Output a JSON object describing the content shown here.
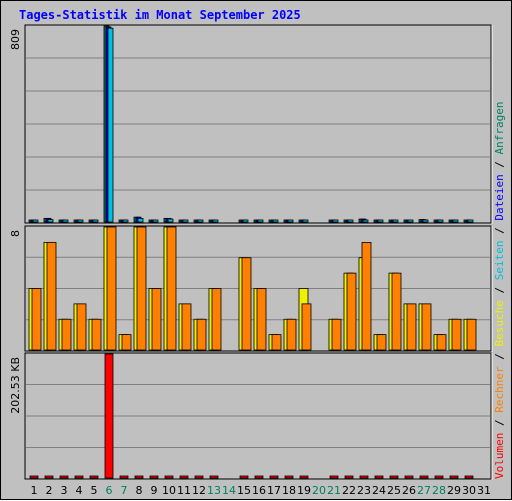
{
  "chart_data": {
    "type": "bar",
    "title": "Tages-Statistik im Monat September 2025",
    "categories": [
      "1",
      "2",
      "3",
      "4",
      "5",
      "6",
      "7",
      "8",
      "9",
      "10",
      "11",
      "12",
      "13",
      "14",
      "15",
      "16",
      "17",
      "18",
      "19",
      "20",
      "21",
      "22",
      "23",
      "24",
      "25",
      "26",
      "27",
      "28",
      "29",
      "30",
      "31"
    ],
    "weekend_days": [
      "6",
      "7",
      "13",
      "14",
      "20",
      "21",
      "27",
      "28"
    ],
    "grid": true,
    "legend_position": "right (vertical)",
    "legend": [
      {
        "label": "Anfragen",
        "color": "#008060"
      },
      {
        "label": "Dateien",
        "color": "#0000ff"
      },
      {
        "label": "Seiten",
        "color": "#00c0e0"
      },
      {
        "label": "Besuche",
        "color": "#f0f000"
      },
      {
        "label": "Rechner",
        "color": "#ff8000"
      },
      {
        "label": "Volumen",
        "color": "#ff0000"
      }
    ],
    "legend_separator": "/",
    "panels": [
      {
        "y_max_label": "809",
        "ylim": [
          0,
          809
        ],
        "series": [
          {
            "name": "Anfragen",
            "color": "#008060",
            "values": [
              5,
              15,
              5,
              5,
              5,
              809,
              5,
              20,
              5,
              15,
              5,
              5,
              8,
              0,
              8,
              8,
              5,
              5,
              8,
              0,
              5,
              8,
              12,
              5,
              8,
              5,
              10,
              5,
              5,
              5,
              0
            ]
          },
          {
            "name": "Dateien",
            "color": "#0000ff",
            "values": [
              5,
              15,
              5,
              5,
              5,
              805,
              5,
              20,
              5,
              15,
              5,
              5,
              8,
              0,
              8,
              8,
              5,
              5,
              8,
              0,
              5,
              8,
              12,
              5,
              8,
              5,
              10,
              5,
              5,
              5,
              0
            ]
          },
          {
            "name": "Seiten",
            "color": "#00c0e0",
            "values": [
              3,
              10,
              3,
              3,
              3,
              800,
              3,
              15,
              3,
              12,
              3,
              3,
              6,
              0,
              6,
              6,
              3,
              3,
              6,
              0,
              3,
              6,
              8,
              3,
              6,
              3,
              8,
              3,
              3,
              3,
              0
            ]
          }
        ]
      },
      {
        "y_max_label": "8",
        "ylim": [
          0,
          8
        ],
        "series": [
          {
            "name": "Besuche",
            "color": "#f0f000",
            "values": [
              4,
              7,
              2,
              3,
              2,
              8,
              1,
              8,
              4,
              8,
              3,
              2,
              4,
              0,
              6,
              4,
              1,
              2,
              4,
              0,
              2,
              5,
              6,
              1,
              5,
              3,
              3,
              1,
              2,
              2,
              0
            ]
          },
          {
            "name": "Rechner",
            "color": "#ff8000",
            "values": [
              4,
              7,
              2,
              3,
              2,
              8,
              1,
              8,
              4,
              8,
              3,
              2,
              4,
              0,
              6,
              4,
              1,
              2,
              3,
              0,
              2,
              5,
              7,
              1,
              5,
              3,
              3,
              1,
              2,
              2,
              0
            ]
          }
        ]
      },
      {
        "y_max_label": "202.53 KB",
        "ylim": [
          0,
          202.53
        ],
        "unit": "KB",
        "series": [
          {
            "name": "Volumen",
            "color": "#ff0000",
            "values": [
              2,
              2,
              2,
              2,
              2,
              202.53,
              2,
              3,
              2,
              3,
              2,
              2,
              2,
              0,
              3,
              3,
              2,
              2,
              2,
              0,
              2,
              2,
              3,
              2,
              2,
              2,
              2,
              2,
              2,
              2,
              0
            ]
          }
        ]
      }
    ]
  }
}
